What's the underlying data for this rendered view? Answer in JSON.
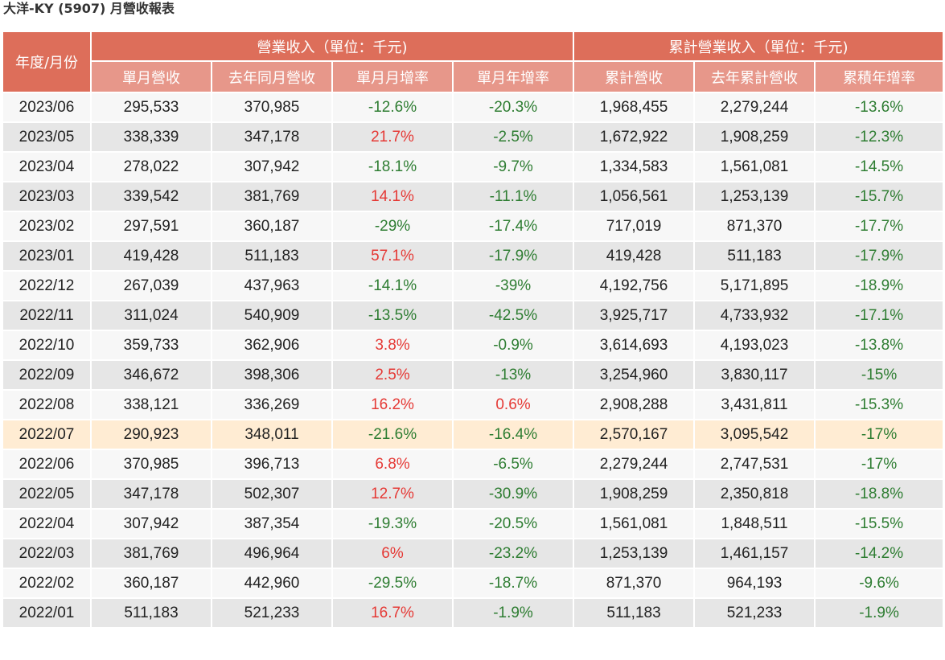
{
  "page": {
    "title": "大洋-KY (5907) 月營收報表"
  },
  "table": {
    "corner_header": "年度/月份",
    "group_headers": [
      "營業收入（單位：千元)",
      "累計營業收入（單位：千元)"
    ],
    "columns": [
      "單月營收",
      "去年同月營收",
      "單月月增率",
      "單月年增率",
      "累計營收",
      "去年累計營收",
      "累積年增率"
    ],
    "rows": [
      [
        "2023/06",
        "295,533",
        "370,985",
        "-12.6%",
        "-20.3%",
        "1,968,455",
        "2,279,244",
        "-13.6%"
      ],
      [
        "2023/05",
        "338,339",
        "347,178",
        "21.7%",
        "-2.5%",
        "1,672,922",
        "1,908,259",
        "-12.3%"
      ],
      [
        "2023/04",
        "278,022",
        "307,942",
        "-18.1%",
        "-9.7%",
        "1,334,583",
        "1,561,081",
        "-14.5%"
      ],
      [
        "2023/03",
        "339,542",
        "381,769",
        "14.1%",
        "-11.1%",
        "1,056,561",
        "1,253,139",
        "-15.7%"
      ],
      [
        "2023/02",
        "297,591",
        "360,187",
        "-29%",
        "-17.4%",
        "717,019",
        "871,370",
        "-17.7%"
      ],
      [
        "2023/01",
        "419,428",
        "511,183",
        "57.1%",
        "-17.9%",
        "419,428",
        "511,183",
        "-17.9%"
      ],
      [
        "2022/12",
        "267,039",
        "437,963",
        "-14.1%",
        "-39%",
        "4,192,756",
        "5,171,895",
        "-18.9%"
      ],
      [
        "2022/11",
        "311,024",
        "540,909",
        "-13.5%",
        "-42.5%",
        "3,925,717",
        "4,733,932",
        "-17.1%"
      ],
      [
        "2022/10",
        "359,733",
        "362,906",
        "3.8%",
        "-0.9%",
        "3,614,693",
        "4,193,023",
        "-13.8%"
      ],
      [
        "2022/09",
        "346,672",
        "398,306",
        "2.5%",
        "-13%",
        "3,254,960",
        "3,830,117",
        "-15%"
      ],
      [
        "2022/08",
        "338,121",
        "336,269",
        "16.2%",
        "0.6%",
        "2,908,288",
        "3,431,811",
        "-15.3%"
      ],
      [
        "2022/07",
        "290,923",
        "348,011",
        "-21.6%",
        "-16.4%",
        "2,570,167",
        "3,095,542",
        "-17%"
      ],
      [
        "2022/06",
        "370,985",
        "396,713",
        "6.8%",
        "-6.5%",
        "2,279,244",
        "2,747,531",
        "-17%"
      ],
      [
        "2022/05",
        "347,178",
        "502,307",
        "12.7%",
        "-30.9%",
        "1,908,259",
        "2,350,818",
        "-18.8%"
      ],
      [
        "2022/04",
        "307,942",
        "387,354",
        "-19.3%",
        "-20.5%",
        "1,561,081",
        "1,848,511",
        "-15.5%"
      ],
      [
        "2022/03",
        "381,769",
        "496,964",
        "6%",
        "-23.2%",
        "1,253,139",
        "1,461,157",
        "-14.2%"
      ],
      [
        "2022/02",
        "360,187",
        "442,960",
        "-29.5%",
        "-18.7%",
        "871,370",
        "964,193",
        "-9.6%"
      ],
      [
        "2022/01",
        "511,183",
        "521,233",
        "16.7%",
        "-1.9%",
        "511,183",
        "521,233",
        "-1.9%"
      ]
    ],
    "highlighted_row": "2022/07"
  },
  "colors": {
    "header_primary": "#dd6e5a",
    "header_secondary": "#e7978a",
    "positive": "#e53935",
    "negative": "#2e7d32",
    "highlight_row": "#ffecd3"
  }
}
